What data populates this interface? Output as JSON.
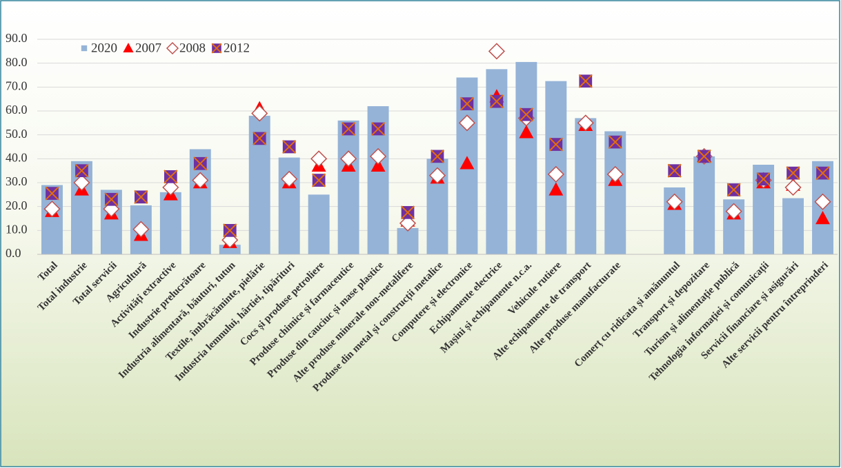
{
  "chart_data": {
    "type": "bar",
    "categories": [
      "Total",
      "Total industrie",
      "Total servicii",
      "Agricultură",
      "Activități extractive",
      "Industrie prelucrătoare",
      "Industria alimentară, băuturi, tutun",
      "Textile, îmbrăcăminte, pielărie",
      "Industria lemnului, hârtiei, tipărituri",
      "Cocs și produse petroliere",
      "Produse chimice și farmaceutice",
      "Produse din cauciuc și mase plastice",
      "Alte produse minerale non-metalifere",
      "Produse din metal și construcții metalice",
      "Computere și electronice",
      "Echipamente electrice",
      "Mașini și echipamente n.c.a.",
      "Vehicule rutiere",
      "Alte echipamente de transport",
      "Alte produse manufacturate",
      null,
      "Comerț cu ridicata și amănuntul",
      "Transport și depozitare",
      "Turism și alimentație publică",
      "Tehnologia informației și comunicații",
      "Servicii financiare și asigurări",
      "Alte servicii pentru întreprinderi"
    ],
    "series": [
      {
        "name": "2020",
        "color": "#95b3d7",
        "values": [
          29,
          39,
          27,
          20.5,
          26,
          44,
          4,
          58,
          40.5,
          25,
          56,
          62,
          11,
          40,
          74,
          77.5,
          80.5,
          72.5,
          57,
          51.5,
          null,
          28,
          41,
          23,
          37.5,
          23.5,
          39
        ]
      },
      {
        "name": "2007",
        "color": "#ff0000",
        "marker": "triangle",
        "values": [
          18,
          27,
          17,
          8,
          25,
          30,
          5,
          61,
          30,
          37,
          37,
          37,
          14,
          32,
          38,
          66,
          51,
          27,
          54,
          31,
          null,
          21,
          41,
          17,
          30,
          29,
          15
        ]
      },
      {
        "name": "2008",
        "color": "#c0504d",
        "marker": "diamond",
        "values": [
          19,
          30,
          19,
          10.5,
          28,
          31,
          6,
          59,
          31.5,
          40,
          40,
          41,
          13,
          33,
          55,
          85,
          57,
          33.5,
          55,
          33.5,
          null,
          22,
          41,
          18,
          31,
          28,
          22
        ]
      },
      {
        "name": "2012",
        "color": "#7030a0",
        "marker": "cross",
        "values": [
          25.5,
          35,
          23,
          24,
          32.5,
          38,
          10,
          48.5,
          45,
          31,
          52.5,
          52.5,
          17.5,
          41,
          63,
          64,
          58.5,
          46,
          72.5,
          47,
          null,
          35,
          41,
          27,
          31.5,
          34,
          34
        ]
      }
    ],
    "ylim": [
      0,
      90
    ],
    "yticks": [
      {
        "value": 0,
        "label": "0.0"
      },
      {
        "value": 10,
        "label": "10.0"
      },
      {
        "value": 20,
        "label": "20.0"
      },
      {
        "value": 30,
        "label": "30.0"
      },
      {
        "value": 40,
        "label": "40.0"
      },
      {
        "value": 50,
        "label": "50.0"
      },
      {
        "value": 60,
        "label": "60.0"
      },
      {
        "value": 70,
        "label": "70.0"
      },
      {
        "value": 80,
        "label": "80.0"
      },
      {
        "value": 90,
        "label": "90.0"
      }
    ],
    "grid": true,
    "legend": "top-left"
  }
}
